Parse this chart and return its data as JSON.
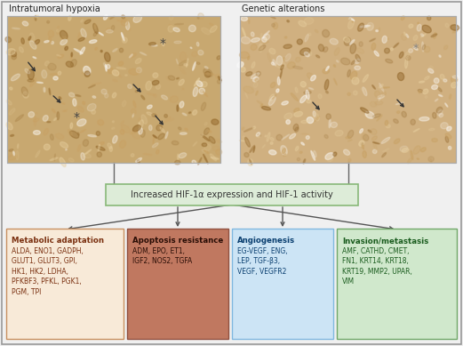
{
  "background_color": "#f0f0f0",
  "outer_border_color": "#999999",
  "label_hypoxia": "Intratumoral hypoxia",
  "label_genetic": "Genetic alterations",
  "central_box": {
    "text": "Increased HIF-1α expression and HIF-1 activity",
    "bg_color": "#ddecd8",
    "border_color": "#88b878",
    "text_color": "#333333"
  },
  "boxes": [
    {
      "title": "Metabolic adaptation",
      "content": "ALDA, ENO1, GADPH,\nGLUT1, GLUT3, GPI,\nHK1, HK2, LDHA,\nPFKBF3, PFKL, PGK1,\nPGM, TPI",
      "bg_color": "#f8ead8",
      "border_color": "#c89060",
      "title_color": "#7a3010",
      "text_color": "#7a3010"
    },
    {
      "title": "Apoptosis resistance",
      "content": "ADM, EPO, ET1,\nIGF2, NOS2, TGFA",
      "bg_color": "#c07860",
      "border_color": "#905040",
      "title_color": "#2a0e06",
      "text_color": "#2a0e06"
    },
    {
      "title": "Angiogenesis",
      "content": "EG-VEGF, ENG,\nLEP, TGF-β3,\nVEGF, VEGFR2",
      "bg_color": "#cce4f5",
      "border_color": "#80b8e0",
      "title_color": "#0a3f70",
      "text_color": "#0a3f70"
    },
    {
      "title": "Invasion/metastasis",
      "content": "AMF, CATHD, CMET,\nFN1, KRT14, KRT18,\nKRT19, MMP2, UPAR,\nVIM",
      "bg_color": "#d0e8cc",
      "border_color": "#70a868",
      "title_color": "#1a5c1e",
      "text_color": "#1a5c1e"
    }
  ],
  "img_left_colors": [
    "#b89060",
    "#d0a870",
    "#c8b080",
    "#e0c898",
    "#a07840",
    "#907040",
    "#d8c090",
    "#c09868",
    "#e8d0a0",
    "#b0906a"
  ],
  "img_right_colors": [
    "#c8a870",
    "#d8b880",
    "#c0a060",
    "#b89060",
    "#d0b878",
    "#e0c890",
    "#a89060",
    "#c8b070",
    "#b09868",
    "#d8c080"
  ],
  "arrow_color": "#555555",
  "line_color": "#666666"
}
